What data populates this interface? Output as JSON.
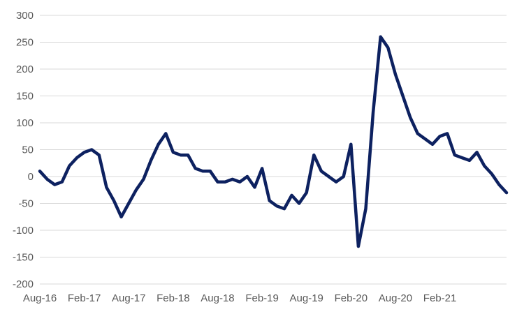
{
  "chart_data": {
    "type": "line",
    "title": "",
    "xlabel": "",
    "ylabel": "",
    "ylim": [
      -200,
      300
    ],
    "yticks": [
      300,
      250,
      200,
      150,
      100,
      50,
      0,
      -50,
      -100,
      -150,
      -200
    ],
    "xticks": [
      "Aug-16",
      "Feb-17",
      "Aug-17",
      "Feb-18",
      "Aug-18",
      "Feb-19",
      "Aug-19",
      "Feb-20",
      "Aug-20",
      "Feb-21"
    ],
    "xlim": [
      "2016-08",
      "2021-11"
    ],
    "grid": true,
    "legend": "none",
    "colors": {
      "line": "#0d2160",
      "grid": "#d9d9d9",
      "text": "#595959"
    },
    "series": [
      {
        "x": [
          "2016-08",
          "2016-09",
          "2016-10",
          "2016-11",
          "2016-12",
          "2017-01",
          "2017-02",
          "2017-03",
          "2017-04",
          "2017-05",
          "2017-06",
          "2017-07",
          "2017-08",
          "2017-09",
          "2017-10",
          "2017-11",
          "2017-12",
          "2018-01",
          "2018-02",
          "2018-03",
          "2018-04",
          "2018-05",
          "2018-06",
          "2018-07",
          "2018-08",
          "2018-09",
          "2018-10",
          "2018-11",
          "2018-12",
          "2019-01",
          "2019-02",
          "2019-03",
          "2019-04",
          "2019-05",
          "2019-06",
          "2019-07",
          "2019-08",
          "2019-09",
          "2019-10",
          "2019-11",
          "2019-12",
          "2020-01",
          "2020-02",
          "2020-03",
          "2020-04",
          "2020-05",
          "2020-06",
          "2020-07",
          "2020-08",
          "2020-09",
          "2020-10",
          "2020-11",
          "2020-12",
          "2021-01",
          "2021-02",
          "2021-03",
          "2021-04",
          "2021-05",
          "2021-06",
          "2021-07",
          "2021-08",
          "2021-09",
          "2021-10",
          "2021-11"
        ],
        "values": [
          10,
          -5,
          -15,
          -10,
          20,
          35,
          45,
          50,
          40,
          -20,
          -45,
          -75,
          -50,
          -25,
          -5,
          30,
          60,
          80,
          45,
          40,
          40,
          15,
          10,
          10,
          -10,
          -10,
          -5,
          -10,
          0,
          -20,
          15,
          -45,
          -55,
          -60,
          -35,
          -50,
          -30,
          40,
          10,
          0,
          -10,
          0,
          60,
          -130,
          -60,
          120,
          260,
          240,
          190,
          150,
          110,
          80,
          70,
          60,
          75,
          80,
          40,
          35,
          30,
          45,
          20,
          5,
          -15,
          -30
        ]
      }
    ]
  }
}
